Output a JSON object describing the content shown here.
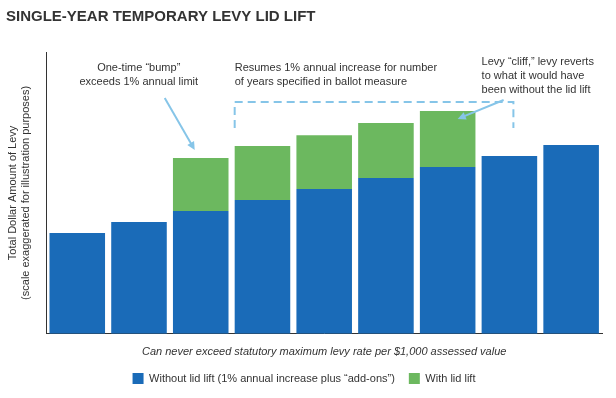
{
  "chart_data": {
    "type": "bar",
    "title": "SINGLE-YEAR TEMPORARY LEVY LID LIFT",
    "ylabel": [
      "Total Dollar Amount of Levy",
      "(scale exaggerated for illustration purposes)"
    ],
    "xlabel": "Can never exceed statutory maximum levy rate per $1,000 assessed value",
    "categories": [
      null,
      null,
      null,
      null,
      null,
      null,
      null,
      null,
      null
    ],
    "series": [
      {
        "name": "Without lid lift (1% annual increase plus “add-ons”)",
        "color": "#1a6bb8",
        "values": [
          35.8,
          39.7,
          43.6,
          47.5,
          51.4,
          55.3,
          59.2,
          63.1,
          67.0
        ]
      },
      {
        "name": "With lid lift",
        "color": "#6cb85f",
        "values": [
          null,
          null,
          18.8,
          19.1,
          19.1,
          19.5,
          19.9,
          null,
          null
        ]
      }
    ],
    "ylim": [
      0,
      100
    ],
    "stacked": true,
    "grid": false,
    "legend": "bottom",
    "tick_labels": false,
    "annotations": [
      {
        "text": [
          "One-time “bump”",
          "exceeds 1% annual limit"
        ]
      },
      {
        "text": [
          "Resumes 1% annual increase for number",
          "of years specified in ballot measure"
        ]
      },
      {
        "text": [
          "Levy “cliff,” levy reverts",
          "to what it would have",
          "been without the lid lift"
        ]
      }
    ]
  }
}
